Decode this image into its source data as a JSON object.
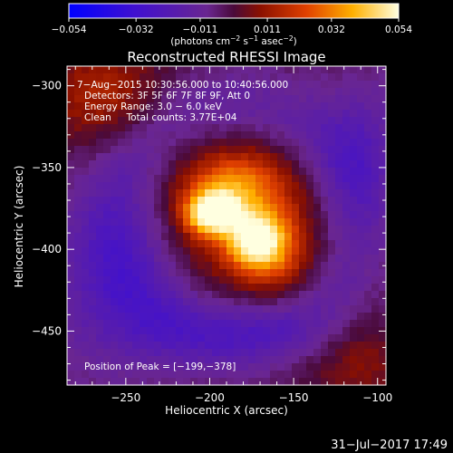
{
  "chart_data": {
    "type": "heatmap",
    "title": "Reconstructed RHESSI Image",
    "xlabel": "Heliocentric X (arcsec)",
    "ylabel": "Heliocentric Y (arcsec)",
    "xlim": [
      -285,
      -95
    ],
    "ylim": [
      -483,
      -288
    ],
    "x_ticks": [
      -250,
      -200,
      -150,
      -100
    ],
    "y_ticks": [
      -300,
      -350,
      -400,
      -450
    ],
    "x_tick_labels": [
      "−250",
      "−200",
      "−150",
      "−100"
    ],
    "y_tick_labels": [
      "−300",
      "−350",
      "−400",
      "−450"
    ],
    "colorbar": {
      "range": [
        -0.054,
        0.054
      ],
      "tick_values": [
        -0.054,
        -0.032,
        -0.011,
        0.011,
        0.032,
        0.054
      ],
      "tick_labels": [
        "−0.054",
        "−0.032",
        "−0.011",
        "0.011",
        "0.032",
        "0.054"
      ],
      "unit_prefix": "(photons cm",
      "unit_sup1": "−2",
      "unit_mid": " s",
      "unit_sup2": "−1",
      "unit_mid2": " asec",
      "unit_sup3": "−2",
      "unit_suffix": ")"
    },
    "annotations": [
      " 7−Aug−2015 10:30:56.000 to 10:40:56.000",
      "Detectors: 3F 5F 6F 7F 8F 9F, Att 0",
      "Energy Range: 3.0 − 6.0 keV",
      "Clean     Total counts: 3.77E+04"
    ],
    "peak_label": "Position of Peak = [−199,−378]",
    "peak": [
      -199,
      -378
    ],
    "sources": [
      {
        "x": -199,
        "y": -378,
        "amp": 0.054,
        "sx": 11,
        "sy": 9
      },
      {
        "x": -173,
        "y": -395,
        "amp": 0.04,
        "sx": 12,
        "sy": 12
      },
      {
        "x": -185,
        "y": -360,
        "amp": 0.026,
        "sx": 20,
        "sy": 14
      },
      {
        "x": -182,
        "y": -385,
        "amp": 0.02,
        "sx": 32,
        "sy": 30
      },
      {
        "x": -160,
        "y": -402,
        "amp": 0.016,
        "sx": 14,
        "sy": 18
      }
    ],
    "background": [
      {
        "x": -265,
        "y": -305,
        "amp": 0.018,
        "sx": 26,
        "sy": 22
      },
      {
        "x": -110,
        "y": -470,
        "amp": 0.012,
        "sx": 26,
        "sy": 20
      },
      {
        "x": -110,
        "y": -340,
        "amp": -0.014,
        "sx": 18,
        "sy": 30
      },
      {
        "x": -255,
        "y": -420,
        "amp": -0.016,
        "sx": 30,
        "sy": 40
      },
      {
        "x": -180,
        "y": -450,
        "amp": -0.012,
        "sx": 40,
        "sy": 14
      }
    ],
    "grid": false
  },
  "footer": {
    "timestamp": "31−Jul−2017 17:49"
  }
}
